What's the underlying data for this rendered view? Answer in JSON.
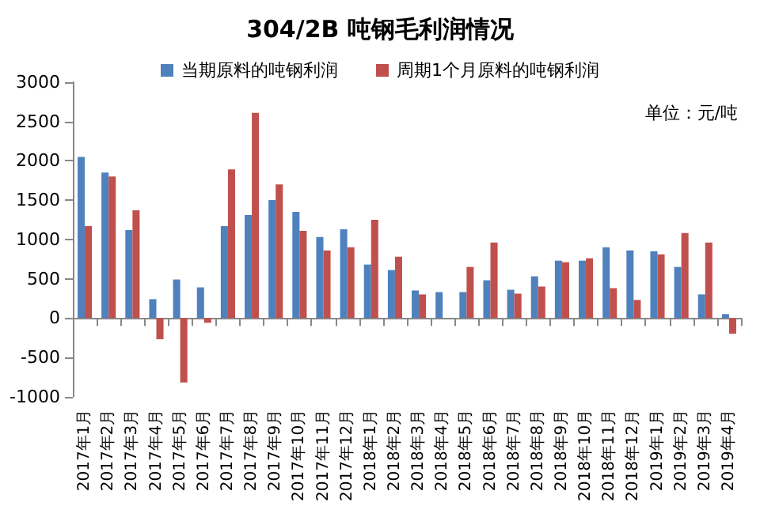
{
  "chart_data": {
    "type": "bar",
    "title": "304/2B 吨钢毛利润情况",
    "annotations": [
      "单位：元/吨"
    ],
    "categories": [
      "2017年1月",
      "2017年2月",
      "2017年3月",
      "2017年4月",
      "2017年5月",
      "2017年6月",
      "2017年7月",
      "2017年8月",
      "2017年9月",
      "2017年10月",
      "2017年11月",
      "2017年12月",
      "2018年1月",
      "2018年2月",
      "2018年3月",
      "2018年4月",
      "2018年5月",
      "2018年6月",
      "2018年7月",
      "2018年8月",
      "2018年9月",
      "2018年10月",
      "2018年11月",
      "2018年12月",
      "2019年1月",
      "2019年2月",
      "2019年3月",
      "2019年4月"
    ],
    "series": [
      {
        "name": "当期原料的吨钢利润",
        "color": "#4f81bd",
        "values": [
          2050,
          1850,
          1120,
          240,
          490,
          390,
          1170,
          1310,
          1500,
          1350,
          1030,
          1130,
          680,
          610,
          350,
          330,
          330,
          480,
          360,
          530,
          730,
          730,
          900,
          860,
          850,
          650,
          300,
          50
        ]
      },
      {
        "name": "周期1个月原料的吨钢利润",
        "color": "#c0504d",
        "values": [
          1170,
          1800,
          1370,
          -270,
          -820,
          -60,
          1890,
          2610,
          1700,
          1110,
          860,
          900,
          1250,
          780,
          300,
          null,
          650,
          960,
          310,
          400,
          710,
          760,
          380,
          230,
          810,
          1080,
          960,
          -200
        ]
      }
    ],
    "ylim": [
      -1000,
      3000
    ],
    "yticks": [
      -1000,
      -500,
      0,
      500,
      1000,
      1500,
      2000,
      2500,
      3000
    ],
    "legend": "top"
  }
}
